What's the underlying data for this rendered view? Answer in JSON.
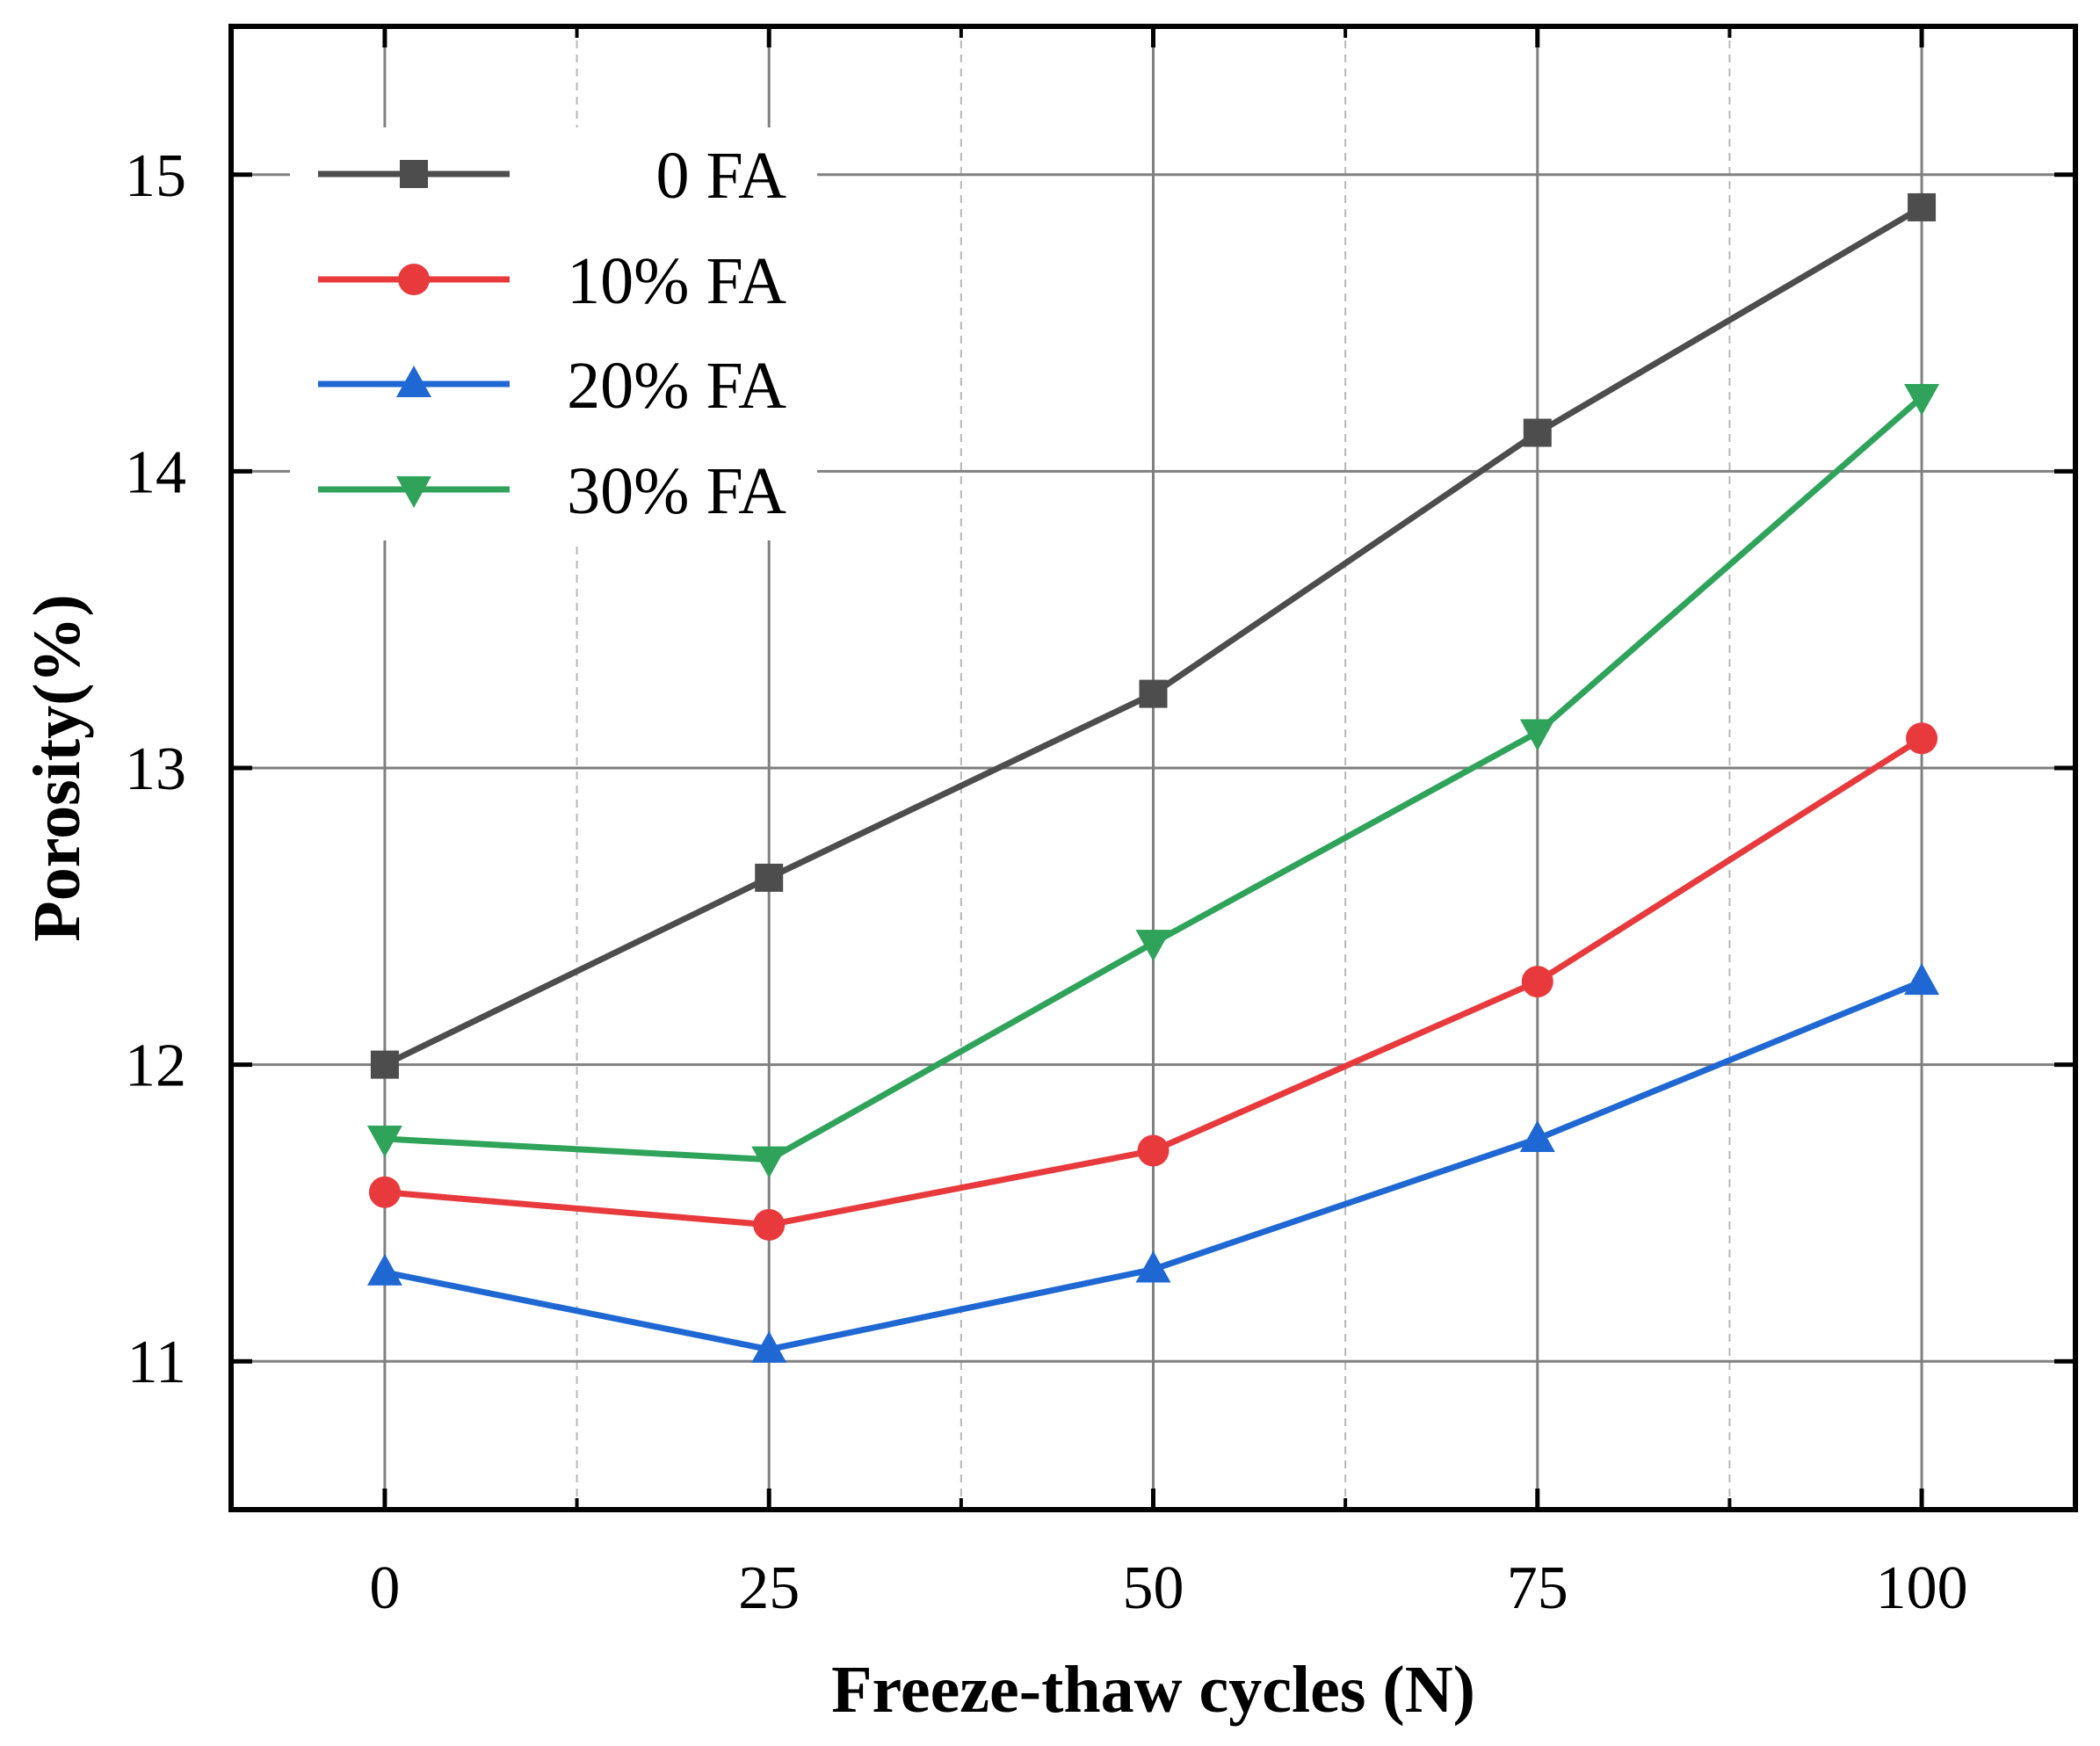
{
  "chart_data": {
    "type": "line",
    "title": "",
    "xlabel": "Freeze-thaw cycles (N)",
    "ylabel": "Porosity(%)",
    "x": [
      0,
      25,
      50,
      75,
      100
    ],
    "xlim": [
      -10,
      110
    ],
    "ylim": [
      10.5,
      15.5
    ],
    "xticks": [
      "0",
      "25",
      "50",
      "75",
      "100"
    ],
    "yticks": [
      "11",
      "12",
      "13",
      "14",
      "15"
    ],
    "grid": true,
    "legend_position": "top-left",
    "series": [
      {
        "name": "0 FA",
        "color": "#4d4d4d",
        "marker": "square",
        "values": [
          12.0,
          12.63,
          13.25,
          14.13,
          14.89
        ]
      },
      {
        "name": "10% FA",
        "color": "#e83a3d",
        "marker": "circle",
        "values": [
          11.57,
          11.46,
          11.71,
          12.28,
          13.1
        ]
      },
      {
        "name": "20% FA",
        "color": "#1f68d4",
        "marker": "triangle-up",
        "values": [
          11.3,
          11.04,
          11.31,
          11.75,
          12.28
        ]
      },
      {
        "name": "30% FA",
        "color": "#2fa35a",
        "marker": "triangle-down",
        "values": [
          11.75,
          11.68,
          12.41,
          13.12,
          14.25
        ]
      }
    ]
  }
}
